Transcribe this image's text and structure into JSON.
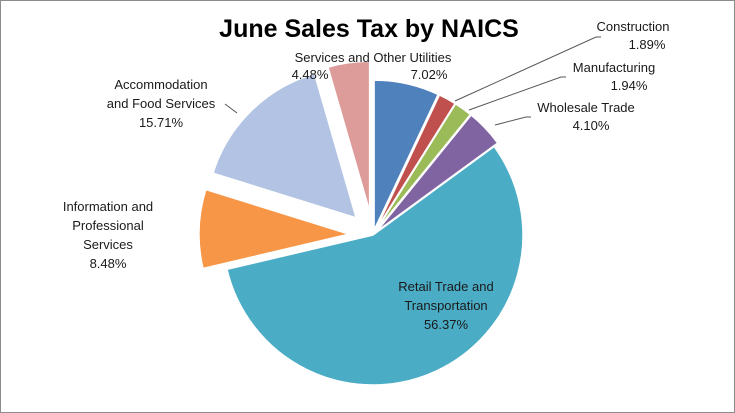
{
  "chart_data": {
    "type": "pie",
    "title": "June Sales Tax by NAICS",
    "legend": "none",
    "slices": [
      {
        "label_lines": [
          "Services and Other Utilities"
        ],
        "value": 7.02,
        "value_label": "7.02%",
        "color": "#4f81bd"
      },
      {
        "label_lines": [
          "Construction"
        ],
        "value": 1.89,
        "value_label": "1.89%",
        "color": "#c0504d"
      },
      {
        "label_lines": [
          "Manufacturing"
        ],
        "value": 1.94,
        "value_label": "1.94%",
        "color": "#9bbb59"
      },
      {
        "label_lines": [
          "Wholesale Trade"
        ],
        "value": 4.1,
        "value_label": "4.10%",
        "color": "#8064a2"
      },
      {
        "label_lines": [
          "Retail Trade and",
          "Transportation"
        ],
        "value": 56.37,
        "value_label": "56.37%",
        "color": "#4bacc6"
      },
      {
        "label_lines": [
          "Information and",
          "Professional",
          "Services"
        ],
        "value": 8.48,
        "value_label": "8.48%",
        "color": "#f79646"
      },
      {
        "label_lines": [
          "Accommodation",
          "and Food Services"
        ],
        "value": 15.71,
        "value_label": "15.71%",
        "color": "#b3c3e3"
      },
      {
        "label_lines": [],
        "value": 4.48,
        "value_label": "4.48%",
        "color": "#dd9c9a"
      }
    ]
  }
}
